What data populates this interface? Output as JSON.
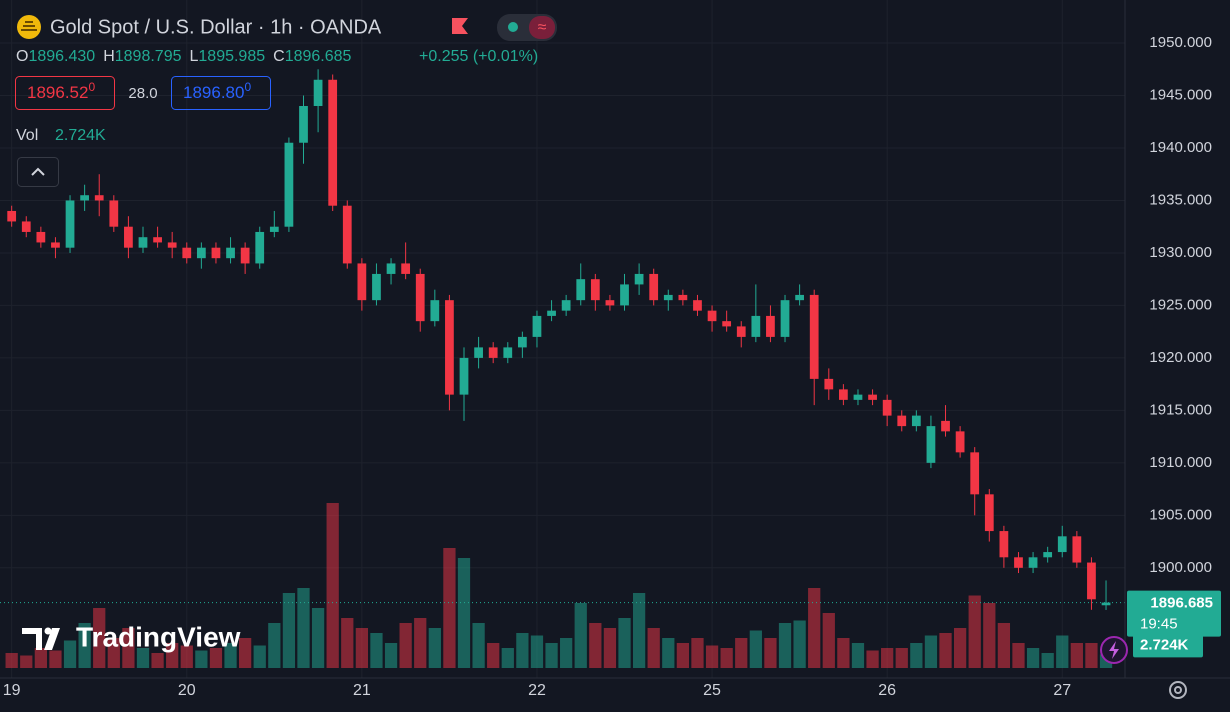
{
  "header": {
    "title": "Gold Spot / U.S. Dollar · 1h · OANDA",
    "ohlc": [
      {
        "label": "O",
        "value": "1896.430"
      },
      {
        "label": "H",
        "value": "1898.795"
      },
      {
        "label": "L",
        "value": "1895.985"
      },
      {
        "label": "C",
        "value": "1896.685"
      }
    ],
    "change": "+0.255 (+0.01%)",
    "bid": "1896.52",
    "bid_sup": "0",
    "spread": "28.0",
    "ask": "1896.80",
    "ask_sup": "0",
    "vol_label": "Vol",
    "vol_value": "2.724K",
    "last_price": "1896.685",
    "countdown": "19:45",
    "vol_badge": "2.724K",
    "logo": "TradingView"
  },
  "chart_data": {
    "type": "candlestick",
    "up_color": "#22ab94",
    "down_color": "#f23645",
    "grid": true,
    "open": [
      1934,
      1933,
      1932,
      1931,
      1930.5,
      1935,
      1935.5,
      1935,
      1932.5,
      1930.5,
      1931.5,
      1931,
      1930.5,
      1929.5,
      1930.5,
      1929.5,
      1930.5,
      1929,
      1932,
      1932.5,
      1940.5,
      1944,
      1946.5,
      1934.5,
      1929,
      1925.5,
      1928,
      1929,
      1928,
      1923.5,
      1925.5,
      1916.5,
      1920,
      1921,
      1920,
      1921,
      1922,
      1924,
      1924.5,
      1925.5,
      1927.5,
      1925.5,
      1925,
      1927,
      1928,
      1925.5,
      1926,
      1925.5,
      1924.5,
      1923.5,
      1923,
      1922,
      1924,
      1922,
      1925.5,
      1926,
      1918,
      1917,
      1916,
      1916.5,
      1916,
      1914.5,
      1913.5,
      1910,
      1914,
      1913,
      1911,
      1907,
      1903.5,
      1901,
      1900,
      1901,
      1901.5,
      1903,
      1900.5,
      1896.43
    ],
    "high": [
      1934.5,
      1933.5,
      1932.5,
      1931.5,
      1935.5,
      1936.5,
      1937.5,
      1935.5,
      1933.5,
      1932.5,
      1932.5,
      1932,
      1931,
      1931,
      1931,
      1931.5,
      1931,
      1932.5,
      1934,
      1941,
      1945,
      1947.5,
      1947,
      1935,
      1929.5,
      1929,
      1929.5,
      1931,
      1928.5,
      1926.5,
      1926,
      1921,
      1922,
      1921.5,
      1921.5,
      1922.5,
      1924.5,
      1925.5,
      1926,
      1929,
      1928,
      1926,
      1928,
      1929,
      1928.5,
      1926.5,
      1926.5,
      1926,
      1925,
      1924.5,
      1923.5,
      1927,
      1925,
      1926,
      1927,
      1926.5,
      1919,
      1917.5,
      1917,
      1917,
      1916.5,
      1915,
      1915,
      1914.5,
      1915.5,
      1913.5,
      1911.5,
      1907.5,
      1904,
      1901.5,
      1901.5,
      1902,
      1904,
      1903.5,
      1901,
      1898.795
    ],
    "low": [
      1932.5,
      1931.5,
      1930.5,
      1929.5,
      1930,
      1934,
      1933.5,
      1932,
      1929.5,
      1930,
      1930.5,
      1929.5,
      1929,
      1928.5,
      1929,
      1929,
      1928,
      1928.5,
      1931.5,
      1932,
      1938.5,
      1941.5,
      1934,
      1928.5,
      1924.5,
      1925,
      1927,
      1927.5,
      1922.5,
      1923,
      1915,
      1914,
      1919,
      1919.5,
      1919.5,
      1920,
      1921,
      1923.5,
      1924,
      1925,
      1924.5,
      1924.5,
      1924.5,
      1926,
      1925,
      1924.5,
      1925,
      1924,
      1922.5,
      1922.5,
      1921,
      1921.5,
      1921.5,
      1921.5,
      1925,
      1915.5,
      1916,
      1915.5,
      1915.5,
      1915.5,
      1913.5,
      1913,
      1913,
      1909.5,
      1912.5,
      1910.5,
      1905,
      1902.5,
      1900,
      1899.5,
      1899.5,
      1900.5,
      1901,
      1900,
      1896,
      1895.985
    ],
    "close": [
      1933,
      1932,
      1931,
      1930.5,
      1935,
      1935.5,
      1935,
      1932.5,
      1930.5,
      1931.5,
      1931,
      1930.5,
      1929.5,
      1930.5,
      1929.5,
      1930.5,
      1929,
      1932,
      1932.5,
      1940.5,
      1944,
      1946.5,
      1934.5,
      1929,
      1925.5,
      1928,
      1929,
      1928,
      1923.5,
      1925.5,
      1916.5,
      1920,
      1921,
      1920,
      1921,
      1922,
      1924,
      1924.5,
      1925.5,
      1927.5,
      1925.5,
      1925,
      1927,
      1928,
      1925.5,
      1926,
      1925.5,
      1924.5,
      1923.5,
      1923,
      1922,
      1924,
      1922,
      1925.5,
      1926,
      1918,
      1917,
      1916,
      1916.5,
      1916,
      1914.5,
      1913.5,
      1914.5,
      1913.5,
      1913,
      1911,
      1907,
      1903.5,
      1901,
      1900,
      1901,
      1901.5,
      1903,
      1900.5,
      1897,
      1896.685
    ],
    "volume": [
      3000,
      2500,
      4000,
      3500,
      5500,
      9000,
      12000,
      6000,
      8000,
      4000,
      3000,
      5000,
      4500,
      3500,
      4000,
      5000,
      6000,
      4500,
      9000,
      15000,
      16000,
      12000,
      33000,
      10000,
      8000,
      7000,
      5000,
      9000,
      10000,
      8000,
      24000,
      22000,
      9000,
      5000,
      4000,
      7000,
      6500,
      5000,
      6000,
      13000,
      9000,
      8000,
      10000,
      15000,
      8000,
      6000,
      5000,
      6000,
      4500,
      4000,
      6000,
      7500,
      6000,
      9000,
      9500,
      16000,
      11000,
      6000,
      5000,
      3500,
      4000,
      4000,
      5000,
      6500,
      7000,
      8000,
      14500,
      13000,
      9000,
      5000,
      4000,
      3000,
      6500,
      5000,
      5000,
      2724
    ],
    "xlim": [
      -0.8,
      76.3
    ],
    "xticks": [
      {
        "value": 0,
        "label": "19"
      },
      {
        "value": 12,
        "label": "20"
      },
      {
        "value": 24,
        "label": "21"
      },
      {
        "value": 36,
        "label": "22"
      },
      {
        "value": 48,
        "label": "25"
      },
      {
        "value": 60,
        "label": "26"
      },
      {
        "value": 72,
        "label": "27"
      }
    ],
    "ylim": [
      1889.5,
      1954.1
    ],
    "yticks": [
      {
        "value": 1900,
        "label": "1900.000"
      },
      {
        "value": 1905,
        "label": "1905.000"
      },
      {
        "value": 1910,
        "label": "1910.000"
      },
      {
        "value": 1915,
        "label": "1915.000"
      },
      {
        "value": 1920,
        "label": "1920.000"
      },
      {
        "value": 1925,
        "label": "1925.000"
      },
      {
        "value": 1930,
        "label": "1930.000"
      },
      {
        "value": 1935,
        "label": "1935.000"
      },
      {
        "value": 1940,
        "label": "1940.000"
      },
      {
        "value": 1945,
        "label": "1945.000"
      },
      {
        "value": 1950,
        "label": "1950.000"
      }
    ],
    "vol_lim": [
      0,
      40000
    ]
  }
}
